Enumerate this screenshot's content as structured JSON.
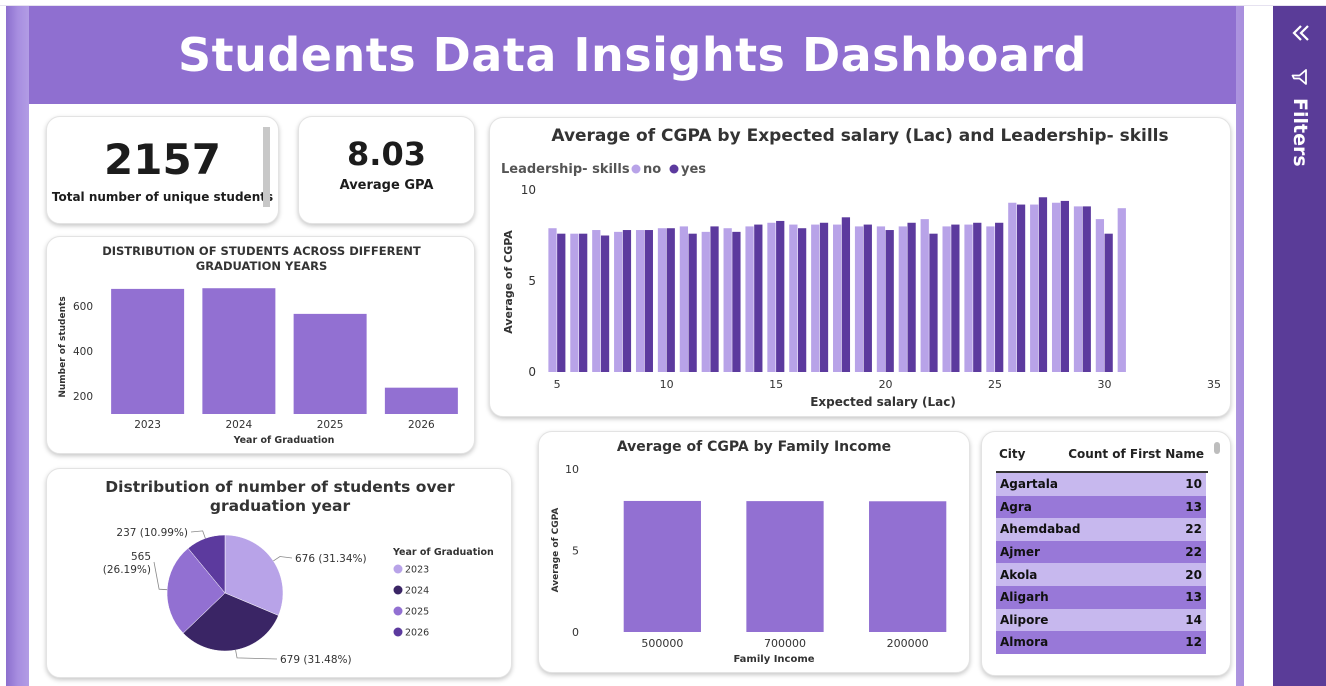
{
  "dashboard": {
    "title": "Students Data Insights Dashboard"
  },
  "kpis": {
    "students": {
      "value": "2157",
      "label": "Total number of unique students"
    },
    "gpa": {
      "value": "8.03",
      "label": "Average GPA"
    }
  },
  "filters_pane": {
    "label": "Filters",
    "collapse_icon": "double-chevron-left-icon",
    "filter_icon": "funnel-icon"
  },
  "colors": {
    "header": "#8f6fd0",
    "bar": "#9270d2",
    "light": "#b8a3e8",
    "dark": "#5c3a9e",
    "navy": "#3a2565"
  },
  "city_table": {
    "headers": [
      "City",
      "Count of First Name"
    ],
    "rows": [
      [
        "Agartala",
        "10"
      ],
      [
        "Agra",
        "13"
      ],
      [
        "Ahemdabad",
        "22"
      ],
      [
        "Ajmer",
        "22"
      ],
      [
        "Akola",
        "20"
      ],
      [
        "Aligarh",
        "13"
      ],
      [
        "Alipore",
        "14"
      ],
      [
        "Almora",
        "12"
      ]
    ]
  },
  "chart_data": [
    {
      "type": "bar",
      "title": "DISTRIBUTION OF STUDENTS ACROSS DIFFERENT GRADUATION YEARS",
      "xlabel": "Year of Graduation",
      "ylabel": "Number of students",
      "categories": [
        "2023",
        "2024",
        "2025",
        "2026"
      ],
      "values": [
        676,
        679,
        565,
        237
      ],
      "yticks": [
        "200",
        "400",
        "600"
      ],
      "ylim": [
        120,
        720
      ],
      "grid": false
    },
    {
      "type": "bar",
      "title": "Average of CGPA by Expected salary (Lac) and Leadership- skills",
      "xlabel": "Expected salary (Lac)",
      "ylabel": "Average of CGPA",
      "legend_title": "Leadership- skills",
      "legend_placement": "top-left",
      "x": [
        5,
        6,
        7,
        8,
        9,
        10,
        11,
        12,
        13,
        14,
        15,
        16,
        17,
        18,
        19,
        20,
        21,
        22,
        23,
        24,
        25,
        26,
        27,
        28,
        29,
        30,
        31
      ],
      "xticks": [
        "5",
        "10",
        "15",
        "20",
        "25",
        "30",
        "35"
      ],
      "yticks": [
        "0",
        "5",
        "10"
      ],
      "xlim": [
        4.4,
        35
      ],
      "ylim": [
        0,
        10
      ],
      "series": [
        {
          "name": "no",
          "values": [
            7.9,
            7.6,
            7.8,
            7.7,
            7.8,
            7.9,
            8.0,
            7.7,
            7.9,
            8.0,
            8.2,
            8.1,
            8.1,
            8.1,
            8.0,
            8.0,
            8.0,
            8.4,
            8.0,
            8.1,
            8.0,
            9.3,
            9.2,
            9.3,
            9.1,
            8.4,
            9.0
          ]
        },
        {
          "name": "yes",
          "values": [
            7.6,
            7.6,
            7.5,
            7.8,
            7.8,
            7.9,
            7.6,
            8.0,
            7.7,
            8.1,
            8.3,
            7.9,
            8.2,
            8.5,
            8.1,
            7.8,
            8.2,
            7.6,
            8.1,
            8.2,
            8.2,
            9.2,
            9.6,
            9.4,
            9.1,
            7.6,
            null
          ]
        }
      ]
    },
    {
      "type": "bar",
      "title": "Average of CGPA by Family Income",
      "xlabel": "Family Income",
      "ylabel": "Average of CGPA",
      "categories": [
        "500000",
        "700000",
        "200000"
      ],
      "values": [
        8.04,
        8.03,
        8.02
      ],
      "yticks": [
        "0",
        "5",
        "10"
      ],
      "ylim": [
        0,
        10
      ]
    },
    {
      "type": "pie",
      "title": "Distribution of number of students over graduation year",
      "legend_title": "Year of Graduation",
      "legend_placement": "right",
      "categories": [
        "2023",
        "2024",
        "2025",
        "2026"
      ],
      "values": [
        676,
        679,
        565,
        237
      ],
      "labels": [
        "676 (31.34%)",
        "679 (31.48%)",
        "565 (26.19%)",
        "237 (10.99%)"
      ]
    }
  ]
}
